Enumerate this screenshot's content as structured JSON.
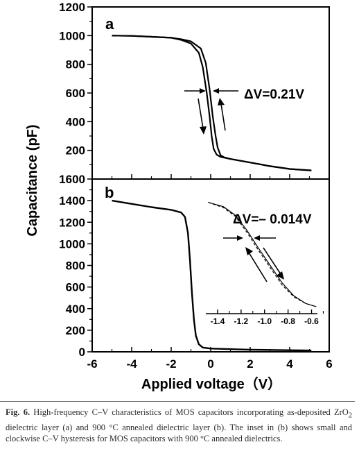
{
  "figure": {
    "ylabel": "Capacitance (pF)",
    "xlabel": "Applied voltage（V）"
  },
  "chart_data": [
    {
      "panel": "a",
      "type": "line",
      "xlim": [
        -6,
        6
      ],
      "ylim": [
        0,
        1200
      ],
      "xticks": [
        -6,
        -4,
        -2,
        0,
        2,
        4,
        6
      ],
      "yticks": [
        200,
        400,
        600,
        800,
        1000,
        1200
      ],
      "grid": false,
      "annotation": "ΔV=0.21V",
      "series": [
        {
          "x": [
            -5,
            -4,
            -3,
            -2,
            -1.5,
            -1,
            -0.6,
            -0.4,
            -0.2,
            -0.05,
            0.05,
            0.15,
            0.3,
            0.5,
            1,
            2,
            3,
            4,
            5.1
          ],
          "y": [
            1000,
            998,
            992,
            985,
            970,
            945,
            880,
            780,
            600,
            430,
            300,
            210,
            170,
            155,
            140,
            115,
            90,
            70,
            60
          ]
        },
        {
          "x": [
            -5,
            -4,
            -3,
            -2,
            -1.5,
            -1,
            -0.5,
            -0.25,
            -0.05,
            0.1,
            0.25,
            0.35,
            0.5,
            0.7,
            1,
            2,
            3,
            4,
            5.1
          ],
          "y": [
            1000,
            998,
            992,
            985,
            975,
            960,
            910,
            810,
            620,
            440,
            300,
            220,
            165,
            150,
            140,
            115,
            90,
            70,
            60
          ]
        }
      ]
    },
    {
      "panel": "b",
      "type": "line",
      "xlim": [
        -6,
        6
      ],
      "ylim": [
        0,
        1600
      ],
      "xticks": [
        -6,
        -4,
        -2,
        0,
        2,
        4,
        6
      ],
      "yticks": [
        0,
        200,
        400,
        600,
        800,
        1000,
        1200,
        1400,
        1600
      ],
      "grid": false,
      "series": [
        {
          "x": [
            -5,
            -4,
            -3,
            -2,
            -1.5,
            -1.3,
            -1.15,
            -1.05,
            -0.95,
            -0.85,
            -0.75,
            -0.6,
            -0.4,
            0,
            2,
            4,
            5.1
          ],
          "y": [
            1400,
            1370,
            1340,
            1315,
            1290,
            1250,
            1100,
            850,
            550,
            300,
            150,
            70,
            40,
            30,
            20,
            15,
            12
          ]
        }
      ],
      "inset": {
        "xlim": [
          -1.5,
          -0.55
        ],
        "xticks": [
          -1.4,
          -1.2,
          -1.0,
          -0.8,
          -0.6
        ],
        "annotation": "ΔV=– 0.014V",
        "series": [
          {
            "x": [
              -1.48,
              -1.35,
              -1.25,
              -1.15,
              -1.05,
              -0.95,
              -0.85,
              -0.75,
              -0.65,
              -0.56
            ],
            "y": [
              0.99,
              0.95,
              0.87,
              0.73,
              0.56,
              0.4,
              0.24,
              0.12,
              0.05,
              0.02
            ]
          },
          {
            "x": [
              -1.48,
              -1.35,
              -1.25,
              -1.15,
              -1.05,
              -0.95,
              -0.85,
              -0.75,
              -0.65,
              -0.56
            ],
            "y": [
              0.99,
              0.94,
              0.86,
              0.71,
              0.54,
              0.38,
              0.22,
              0.11,
              0.05,
              0.02
            ]
          }
        ]
      }
    }
  ],
  "caption": {
    "label": "Fig. 6.",
    "text_part1": " High-frequency C–V characteristics of MOS capacitors incorporating as-deposited ZrO",
    "subscript": "2",
    "text_part2": " dielectric layer (a) and 900 °C annealed dielectric layer (b). The inset in (b) shows small and clockwise C–V hysteresis for MOS capacitors with 900 °C annealed dielectrics."
  }
}
